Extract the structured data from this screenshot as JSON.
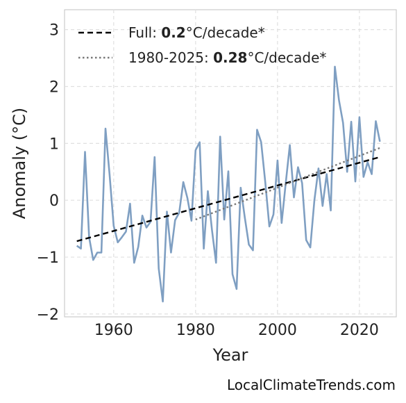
{
  "chart_data": {
    "type": "line",
    "title": "",
    "xlabel": "Year",
    "ylabel": "Anomaly (°C)",
    "xlim": [
      1948,
      2029
    ],
    "ylim": [
      -2.05,
      3.35
    ],
    "xticks": [
      1960,
      1980,
      2000,
      2020
    ],
    "xtick_labels": [
      "1960",
      "1980",
      "2000",
      "2020"
    ],
    "yticks": [
      -2,
      -1,
      0,
      1,
      2,
      3
    ],
    "ytick_labels": [
      "−2",
      "−1",
      "0",
      "1",
      "2",
      "3"
    ],
    "grid": true,
    "legend_position": "top-left",
    "series": [
      {
        "name": "",
        "color": "#7f9fc2",
        "x": [
          1951,
          1952,
          1953,
          1954,
          1955,
          1956,
          1957,
          1958,
          1959,
          1960,
          1961,
          1962,
          1963,
          1964,
          1965,
          1966,
          1967,
          1968,
          1969,
          1970,
          1971,
          1972,
          1973,
          1974,
          1975,
          1976,
          1977,
          1978,
          1979,
          1980,
          1981,
          1982,
          1983,
          1984,
          1985,
          1986,
          1987,
          1988,
          1989,
          1990,
          1991,
          1992,
          1993,
          1994,
          1995,
          1996,
          1997,
          1998,
          1999,
          2000,
          2001,
          2002,
          2003,
          2004,
          2005,
          2006,
          2007,
          2008,
          2009,
          2010,
          2011,
          2012,
          2013,
          2014,
          2015,
          2016,
          2017,
          2018,
          2019,
          2020,
          2021,
          2022,
          2023,
          2024,
          2025
        ],
        "y": [
          -0.8,
          -0.85,
          0.85,
          -0.65,
          -1.05,
          -0.92,
          -0.92,
          1.26,
          0.45,
          -0.45,
          -0.74,
          -0.65,
          -0.55,
          -0.06,
          -1.1,
          -0.82,
          -0.27,
          -0.48,
          -0.38,
          0.76,
          -1.2,
          -1.78,
          -0.2,
          -0.92,
          -0.35,
          -0.22,
          0.32,
          0.04,
          -0.36,
          0.88,
          1.02,
          -0.85,
          0.16,
          -0.52,
          -1.1,
          1.12,
          -0.34,
          0.51,
          -1.3,
          -1.56,
          0.22,
          -0.3,
          -0.78,
          -0.88,
          1.24,
          1.02,
          0.32,
          -0.46,
          -0.25,
          0.7,
          -0.4,
          0.3,
          0.97,
          0.05,
          0.58,
          0.3,
          -0.7,
          -0.83,
          0.0,
          0.56,
          -0.1,
          0.46,
          -0.18,
          2.35,
          1.76,
          1.36,
          0.5,
          1.38,
          0.33,
          1.46,
          0.41,
          0.67,
          0.46,
          1.39,
          1.03
        ]
      },
      {
        "name": "Full trend",
        "color": "#000000",
        "style": "dashed",
        "x": [
          1951,
          2025
        ],
        "y": [
          -0.72,
          0.76
        ]
      },
      {
        "name": "1980-2025 trend",
        "color": "#777777",
        "style": "dotted",
        "x": [
          1980,
          2025
        ],
        "y": [
          -0.34,
          0.92
        ]
      }
    ],
    "legend": [
      {
        "prefix": "Full: ",
        "bold": "0.2",
        "suffix": "°C/decade*",
        "style": "dashed",
        "color": "#000000"
      },
      {
        "prefix": "1980-2025: ",
        "bold": "0.28",
        "suffix": "°C/decade*",
        "style": "dotted",
        "color": "#777777"
      }
    ]
  },
  "watermark": "LocalClimateTrends.com"
}
